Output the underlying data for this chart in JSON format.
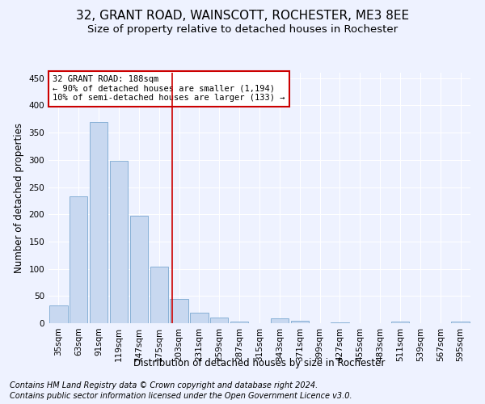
{
  "title1": "32, GRANT ROAD, WAINSCOTT, ROCHESTER, ME3 8EE",
  "title2": "Size of property relative to detached houses in Rochester",
  "xlabel": "Distribution of detached houses by size in Rochester",
  "ylabel": "Number of detached properties",
  "categories": [
    "35sqm",
    "63sqm",
    "91sqm",
    "119sqm",
    "147sqm",
    "175sqm",
    "203sqm",
    "231sqm",
    "259sqm",
    "287sqm",
    "315sqm",
    "343sqm",
    "371sqm",
    "399sqm",
    "427sqm",
    "455sqm",
    "483sqm",
    "511sqm",
    "539sqm",
    "567sqm",
    "595sqm"
  ],
  "values": [
    33,
    233,
    370,
    298,
    198,
    104,
    45,
    20,
    11,
    3,
    0,
    9,
    5,
    0,
    1,
    0,
    0,
    3,
    0,
    0,
    3
  ],
  "bar_color": "#c8d8f0",
  "bar_edge_color": "#7aa8d0",
  "vline_x": 5.64,
  "vline_color": "#cc0000",
  "annotation_text": "32 GRANT ROAD: 188sqm\n← 90% of detached houses are smaller (1,194)\n10% of semi-detached houses are larger (133) →",
  "annotation_box_color": "#ffffff",
  "annotation_box_edge": "#cc0000",
  "ylim": [
    0,
    460
  ],
  "yticks": [
    0,
    50,
    100,
    150,
    200,
    250,
    300,
    350,
    400,
    450
  ],
  "footnote1": "Contains HM Land Registry data © Crown copyright and database right 2024.",
  "footnote2": "Contains public sector information licensed under the Open Government Licence v3.0.",
  "bg_color": "#eef2ff",
  "grid_color": "#ffffff",
  "title1_fontsize": 11,
  "title2_fontsize": 9.5,
  "axis_label_fontsize": 8.5,
  "tick_fontsize": 7.5,
  "footnote_fontsize": 7,
  "annot_fontsize": 7.5
}
